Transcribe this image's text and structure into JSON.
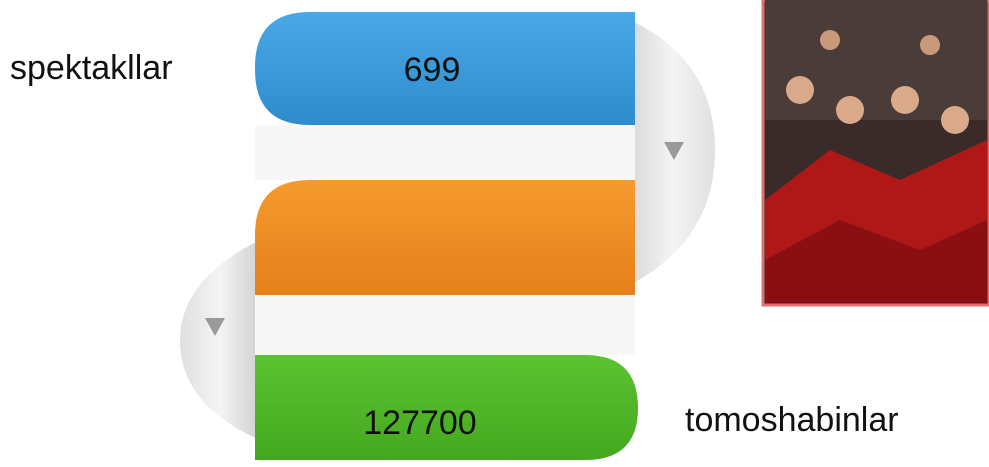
{
  "items": [
    {
      "label": "spektakllar",
      "value": 699
    },
    {
      "label": "tomoshabinlar",
      "value": 127700
    }
  ]
}
